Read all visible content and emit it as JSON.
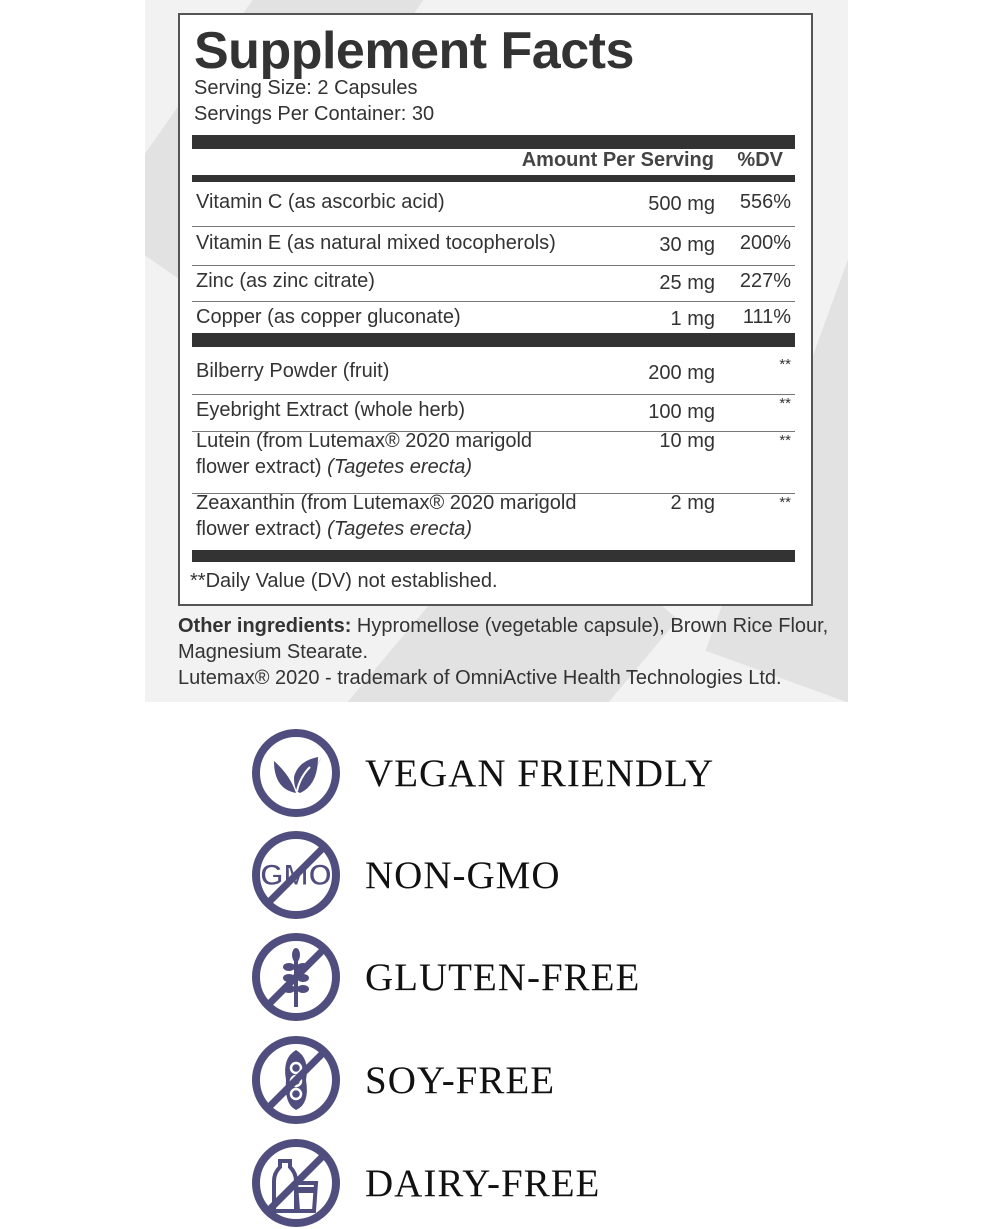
{
  "title": "Supplement Facts",
  "serving_size": "Serving Size: 2 Capsules",
  "servings_per_container": "Servings Per Container: 30",
  "header": {
    "amount": "Amount Per Serving",
    "dv": "%DV"
  },
  "rows": [
    {
      "name": "Vitamin C (as ascorbic acid)",
      "amount": "500 mg",
      "dv": "556%"
    },
    {
      "name": "Vitamin E (as natural mixed tocopherols)",
      "amount": "30 mg",
      "dv": "200%"
    },
    {
      "name": "Zinc (as zinc citrate)",
      "amount": "25 mg",
      "dv": "227%"
    },
    {
      "name": "Copper (as copper gluconate)",
      "amount": "1 mg",
      "dv": "111%"
    },
    {
      "name": "Bilberry Powder (fruit)",
      "amount": "200 mg",
      "dv": "**"
    },
    {
      "name": "Eyebright Extract (whole herb)",
      "amount": "100 mg",
      "dv": "**"
    },
    {
      "name": "Lutein (from Lutemax® 2020 marigold",
      "name2": "flower extract)",
      "italic": "(Tagetes erecta)",
      "amount": "10 mg",
      "dv": "**"
    },
    {
      "name": "Zeaxanthin (from Lutemax® 2020 marigold",
      "name2": "flower extract)",
      "italic": "(Tagetes erecta)",
      "amount": "2 mg",
      "dv": "**"
    }
  ],
  "footnote": "**Daily Value (DV) not established.",
  "other_label": "Other ingredients:",
  "other_text": "Hypromellose (vegetable capsule), Brown Rice Flour, Magnesium Stearate.",
  "trademark": "Lutemax® 2020 - trademark of OmniActive Health Technologies Ltd.",
  "icon_color": "#4f4e7e",
  "claims": [
    {
      "icon": "leaf-icon",
      "label": "VEGAN FRIENDLY"
    },
    {
      "icon": "no-gmo-icon",
      "label": "NON-GMO"
    },
    {
      "icon": "no-wheat-icon",
      "label": "GLUTEN-FREE"
    },
    {
      "icon": "no-soy-icon",
      "label": "SOY-FREE"
    },
    {
      "icon": "no-dairy-icon",
      "label": "DAIRY-FREE"
    }
  ]
}
